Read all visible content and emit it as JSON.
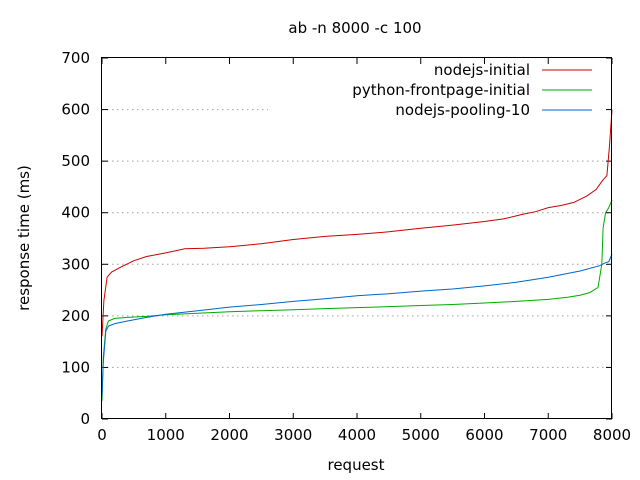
{
  "chart_data": {
    "type": "line",
    "title": "ab -n 8000 -c 100",
    "xlabel": "request",
    "ylabel": "response time (ms)",
    "xlim": [
      0,
      8000
    ],
    "ylim": [
      0,
      700
    ],
    "xticks": [
      0,
      1000,
      2000,
      3000,
      4000,
      5000,
      6000,
      7000,
      8000
    ],
    "yticks": [
      0,
      100,
      200,
      300,
      400,
      500,
      600,
      700
    ],
    "grid": "horizontal dotted",
    "legend_position": "top-right",
    "series": [
      {
        "name": "nodejs-initial",
        "color": "#cc0000",
        "x": [
          0,
          30,
          80,
          150,
          300,
          500,
          700,
          1000,
          1300,
          1600,
          2000,
          2500,
          3000,
          3500,
          4000,
          4500,
          5000,
          5500,
          6000,
          6300,
          6600,
          6800,
          7000,
          7200,
          7400,
          7600,
          7750,
          7850,
          7920,
          7960,
          8000
        ],
        "y": [
          160,
          230,
          275,
          285,
          295,
          307,
          315,
          322,
          330,
          331,
          334,
          340,
          348,
          354,
          358,
          363,
          370,
          376,
          383,
          388,
          397,
          402,
          410,
          414,
          420,
          432,
          445,
          462,
          472,
          530,
          600
        ]
      },
      {
        "name": "python-frontpage-initial",
        "color": "#00aa00",
        "x": [
          0,
          20,
          60,
          100,
          200,
          400,
          700,
          1000,
          1500,
          2000,
          2500,
          3000,
          3500,
          4000,
          4500,
          5000,
          5500,
          6000,
          6500,
          7000,
          7300,
          7500,
          7650,
          7780,
          7840,
          7860,
          7900,
          7950,
          8000
        ],
        "y": [
          35,
          120,
          175,
          190,
          195,
          197,
          199,
          202,
          205,
          208,
          210,
          212,
          214,
          216,
          218,
          220,
          222,
          225,
          228,
          232,
          236,
          240,
          245,
          255,
          300,
          370,
          400,
          410,
          425
        ]
      },
      {
        "name": "nodejs-pooling-10",
        "color": "#0066cc",
        "x": [
          0,
          20,
          60,
          100,
          200,
          400,
          700,
          1000,
          1500,
          2000,
          2500,
          3000,
          3500,
          4000,
          4500,
          5000,
          5500,
          6000,
          6500,
          7000,
          7500,
          7800,
          7900,
          7950,
          8000
        ],
        "y": [
          45,
          110,
          170,
          180,
          185,
          190,
          197,
          203,
          210,
          217,
          222,
          228,
          233,
          239,
          243,
          248,
          252,
          258,
          265,
          275,
          287,
          297,
          303,
          305,
          320
        ]
      }
    ]
  }
}
